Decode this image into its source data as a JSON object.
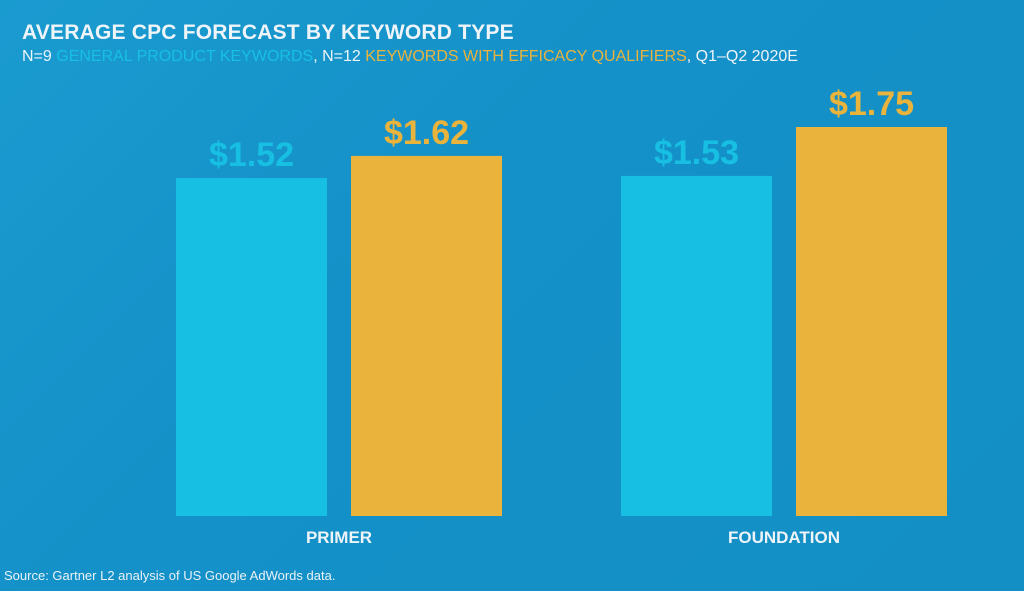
{
  "chart_data": {
    "type": "bar",
    "title": "AVERAGE CPC FORECAST BY KEYWORD TYPE",
    "subtitle": {
      "prefix1": "N=9 ",
      "series1_text": "GENERAL PRODUCT KEYWORDS",
      "prefix2": ", N=12 ",
      "series2_text": "KEYWORDS WITH EFFICACY QUALIFIERS",
      "suffix": ", Q1–Q2 2020E"
    },
    "categories": [
      "PRIMER",
      "FOUNDATION"
    ],
    "series": [
      {
        "name": "GENERAL PRODUCT KEYWORDS",
        "color": "#17c0e3",
        "values": [
          1.52,
          1.53
        ],
        "labels": [
          "$1.52",
          "$1.53"
        ]
      },
      {
        "name": "KEYWORDS WITH EFFICACY QUALIFIERS",
        "color": "#eab33c",
        "values": [
          1.62,
          1.75
        ],
        "labels": [
          "$1.62",
          "$1.75"
        ]
      }
    ],
    "xlabel": "",
    "ylabel": "",
    "ylim": [
      0,
      1.75
    ],
    "grid": false,
    "source": "Source: Gartner L2 analysis of US Google AdWords data."
  }
}
